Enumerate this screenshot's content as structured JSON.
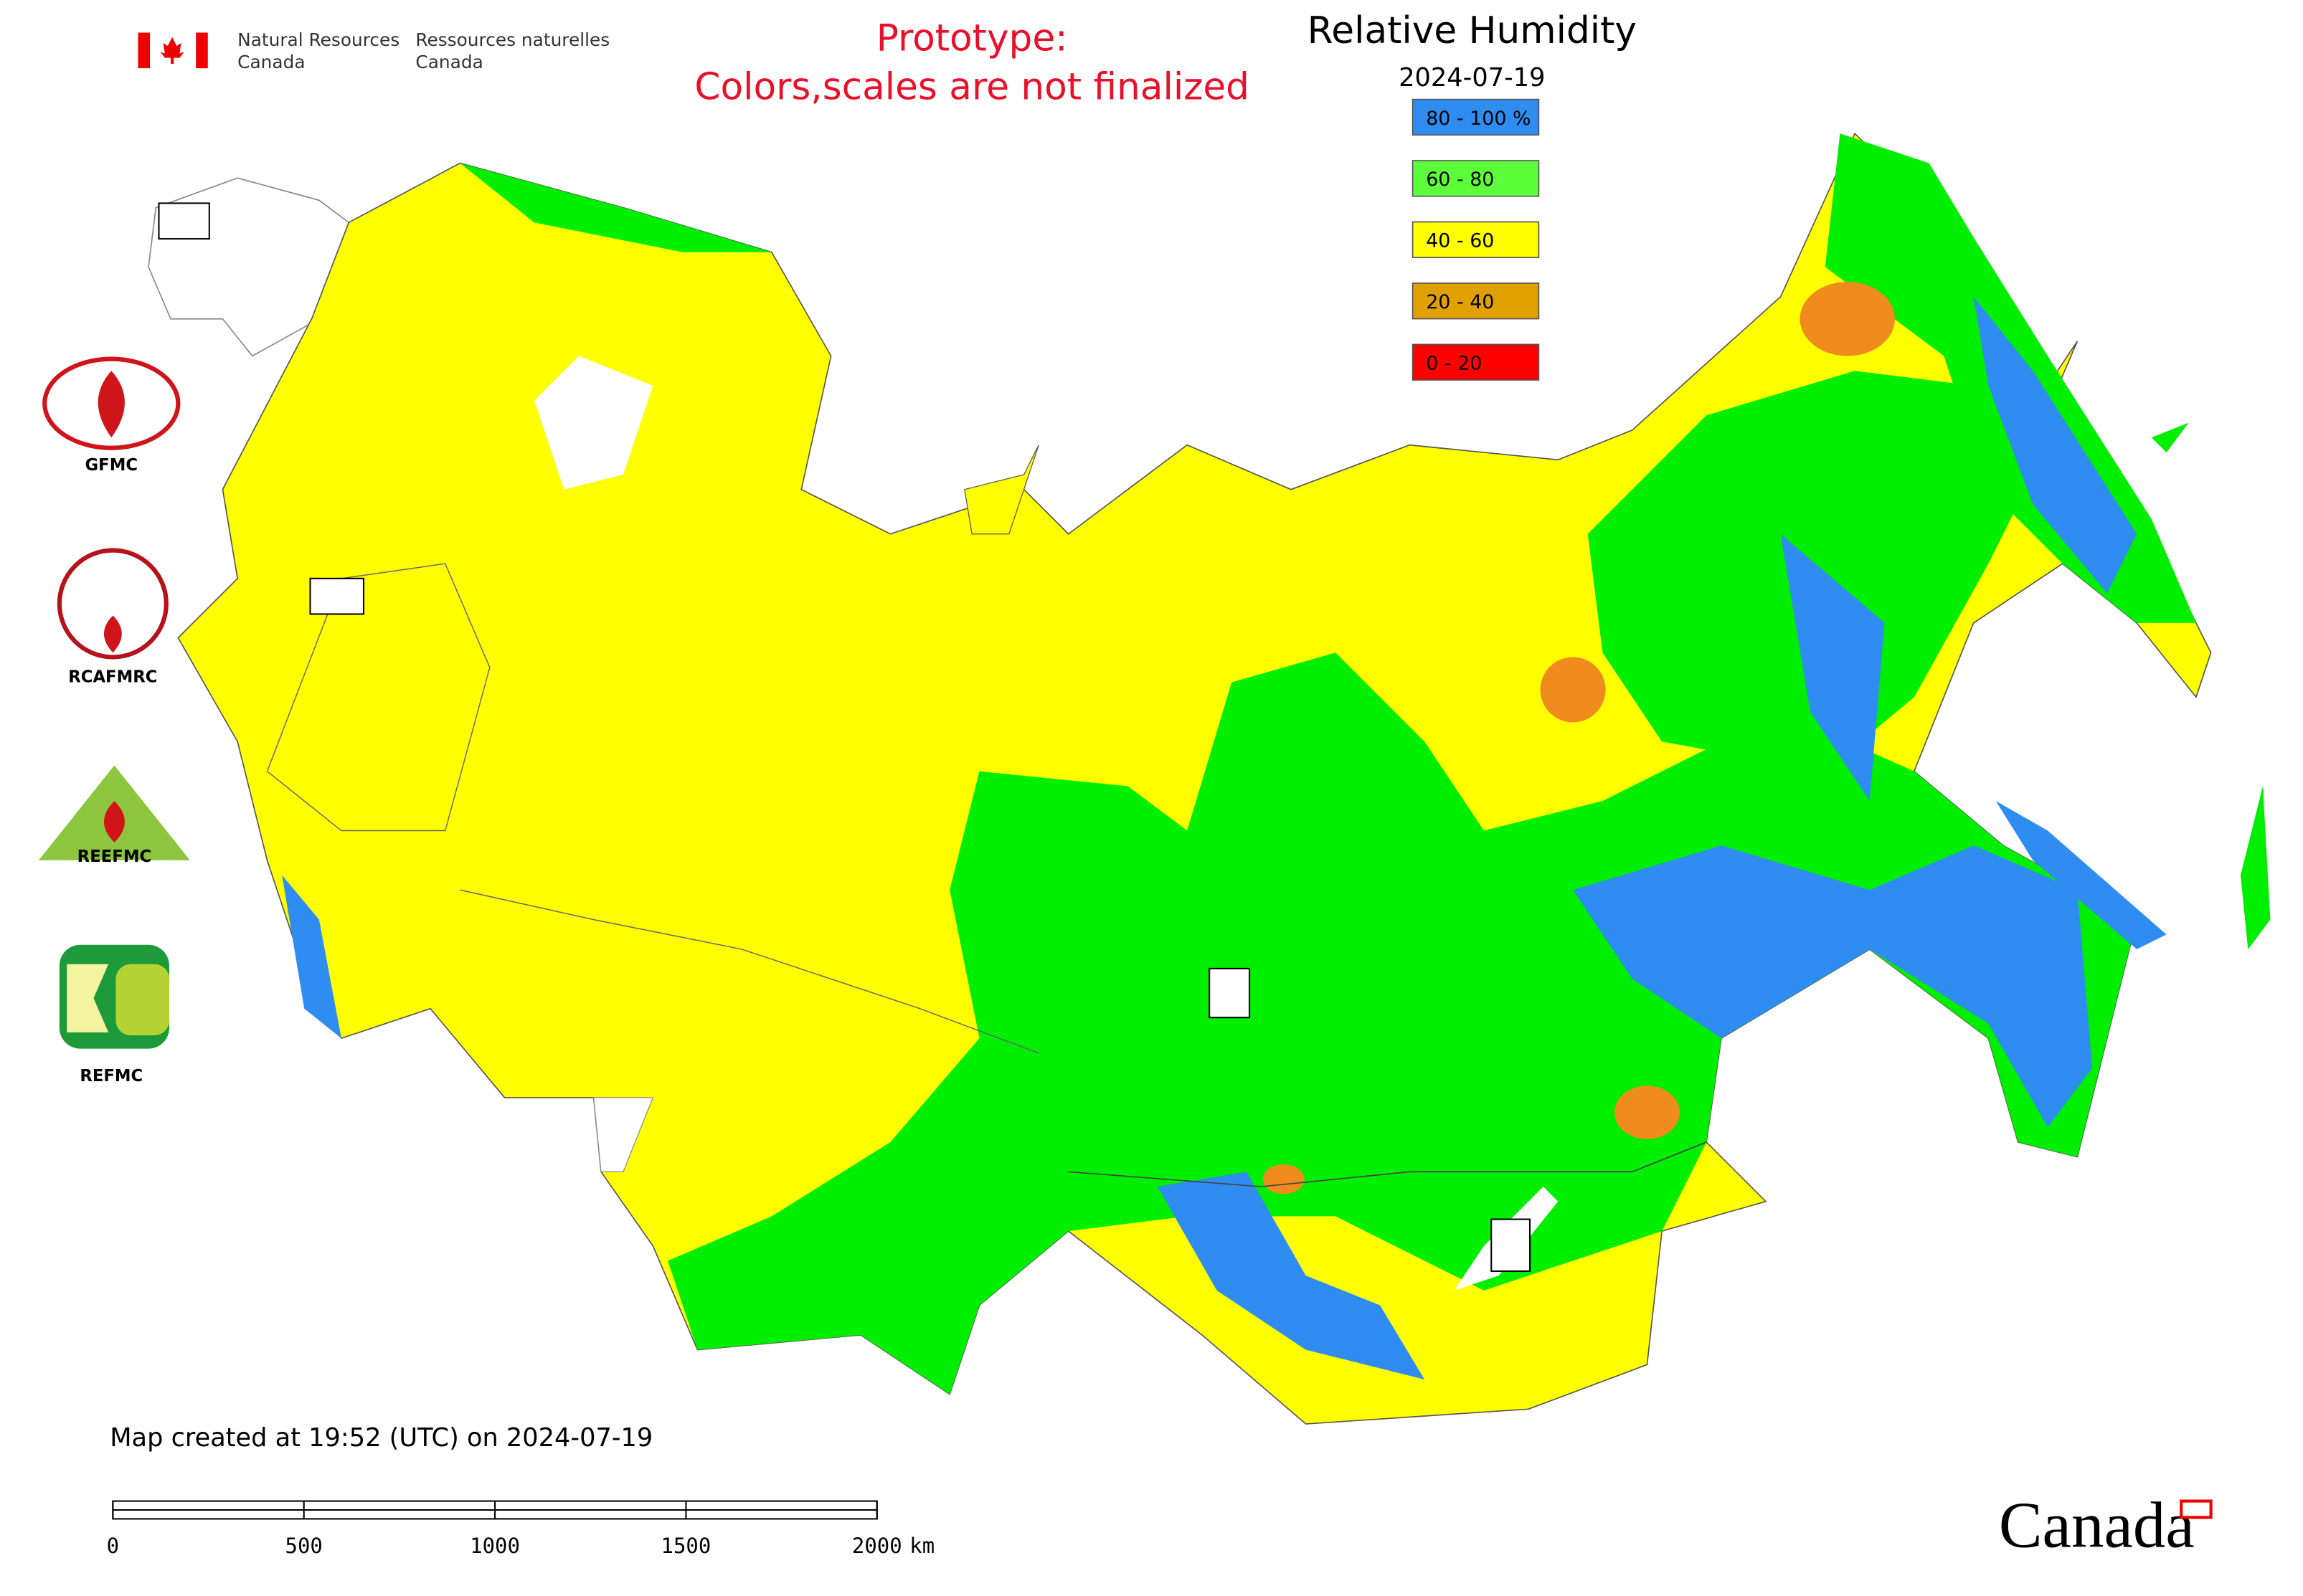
{
  "header": {
    "ministry_en": [
      "Natural Resources",
      "Canada"
    ],
    "ministry_fr": [
      "Ressources naturelles",
      "Canada"
    ]
  },
  "prototype_notice": [
    "Prototype:",
    "Colors,scales are not finalized"
  ],
  "title": "Relative Humidity",
  "date": "2024-07-19",
  "legend": [
    {
      "label": "80 - 100 %",
      "color": "#2f8df2"
    },
    {
      "label": "60 - 80",
      "color": "#5cff3a"
    },
    {
      "label": "40 - 60",
      "color": "#ffff00"
    },
    {
      "label": "20 - 40",
      "color": "#e0a000"
    },
    {
      "label": "0 - 20",
      "color": "#ff0000"
    }
  ],
  "logos": [
    "GFMC",
    "RCAFMRC",
    "REEFMC",
    "REFMC"
  ],
  "footer": "Map created at 19:52 (UTC) on 2024-07-19",
  "scale_bar": {
    "ticks": [
      0,
      500,
      1000,
      1500,
      2000
    ],
    "unit": "km"
  },
  "wordmark": "Canada"
}
